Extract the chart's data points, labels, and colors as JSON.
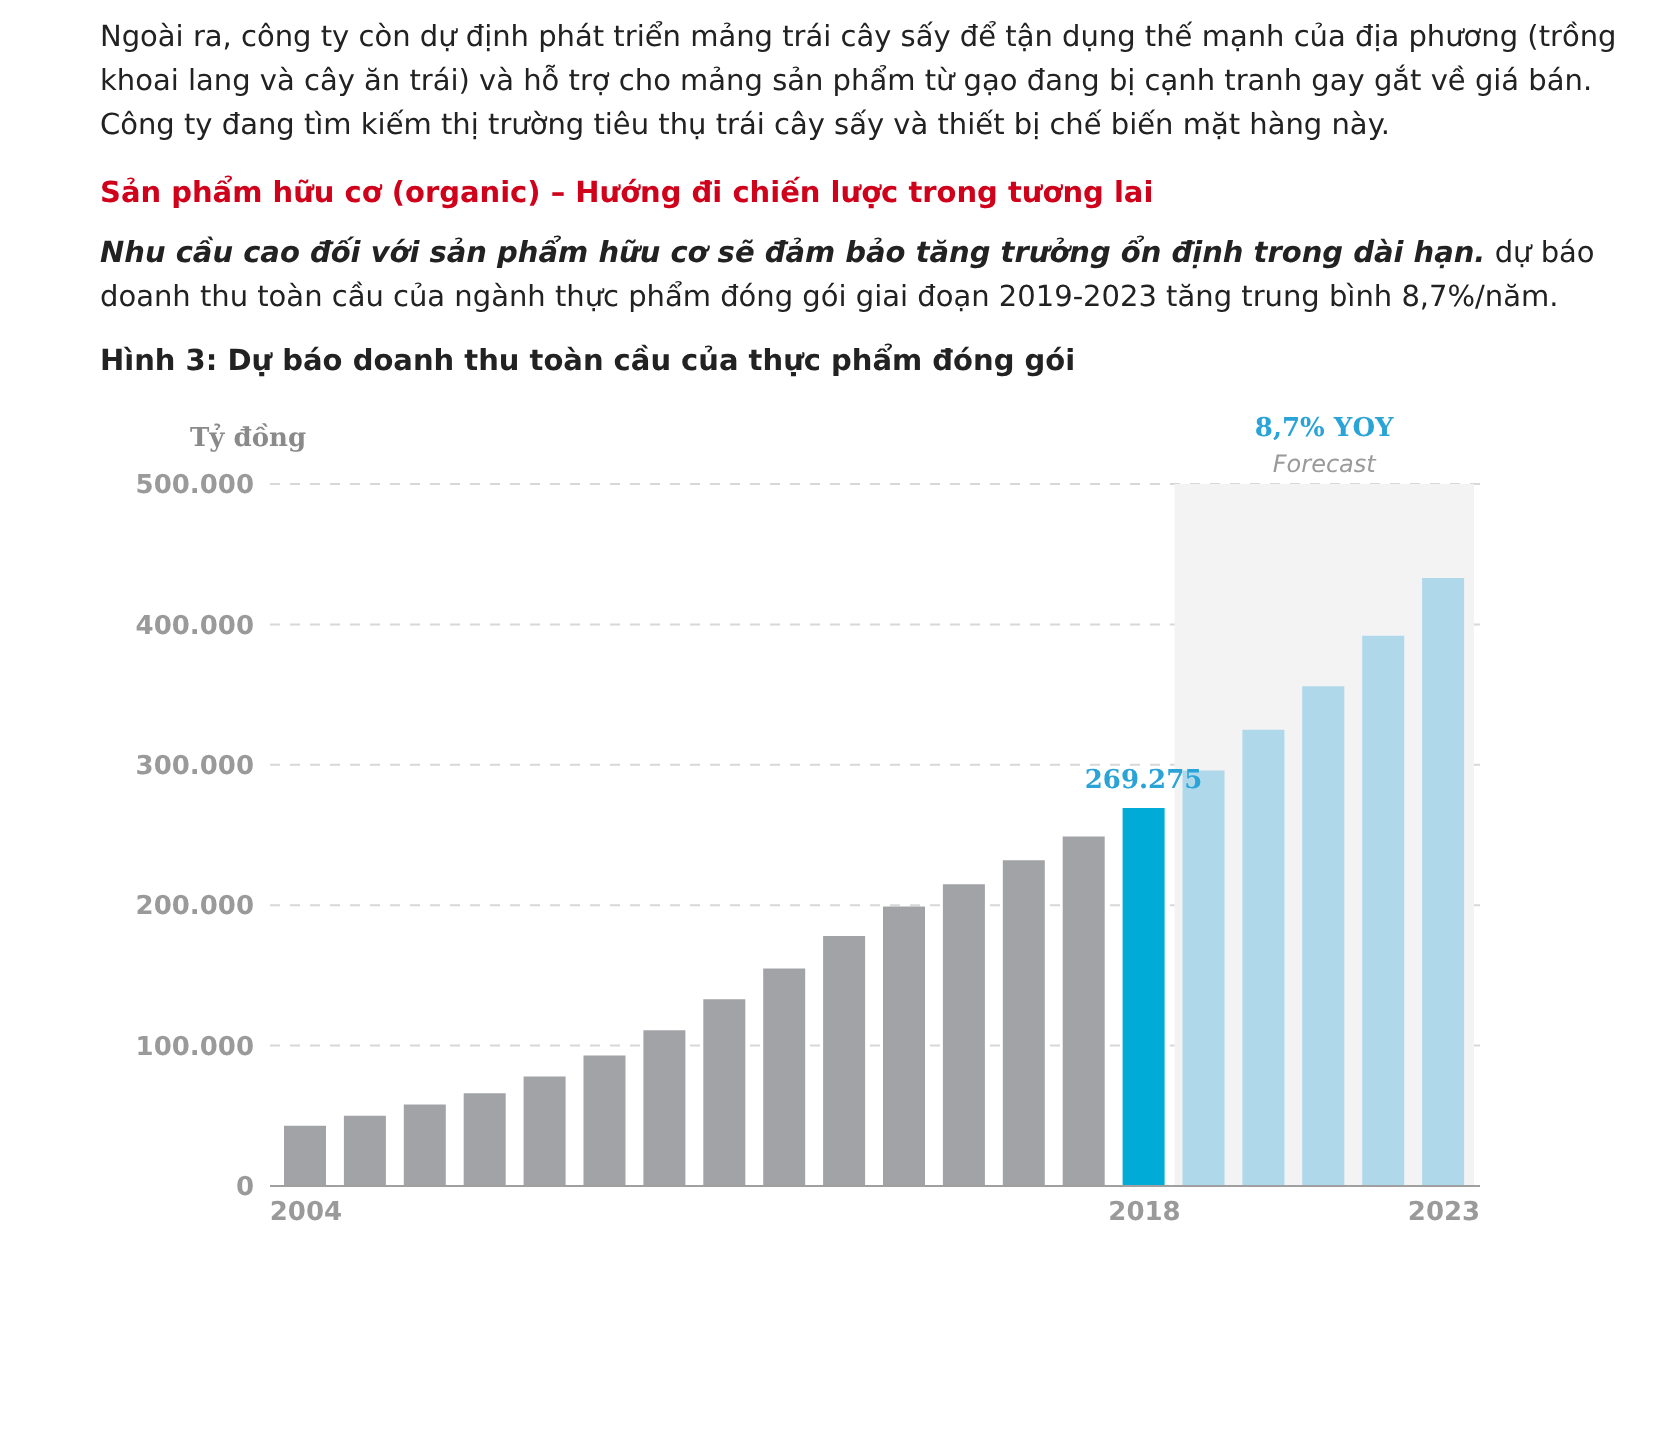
{
  "chart_data": {
    "type": "bar",
    "title": "Hình 3: Dự báo doanh thu toàn cầu của thực phẩm đóng gói",
    "ylabel": "Tỷ đồng",
    "annotations": [
      "Ngoài ra, công ty còn dự định phát triển mảng trái cây sấy để tận dụng thế mạnh của địa phương (trồng khoai lang và cây ăn trái) và hỗ trợ cho mảng sản phẩm từ gạo đang bị cạnh tranh gay gắt về giá bán. Công ty đang tìm kiếm thị trường tiêu thụ trái cây sấy và thiết bị chế biến mặt hàng này.",
      "Sản phẩm hữu cơ (organic) – Hướng đi chiến lược trong tương lai",
      "Nhu cầu cao đối với sản phẩm hữu cơ sẽ đảm bảo tăng trưởng ổn định trong dài hạn.",
      "dự báo doanh thu toàn cầu của ngành thực phẩm đóng gói giai đoạn 2019-2023 tăng trung bình 8,7%/năm.",
      "8,7% YOY"
    ],
    "x": [
      2004,
      2005,
      2006,
      2007,
      2008,
      2009,
      2010,
      2011,
      2012,
      2013,
      2014,
      2015,
      2016,
      2017,
      2018,
      2019,
      2020,
      2021,
      2022,
      2023
    ],
    "values": [
      43000,
      50000,
      58000,
      66000,
      78000,
      93000,
      111000,
      133000,
      155000,
      178000,
      199000,
      215000,
      232000,
      249000,
      269275,
      296000,
      325000,
      356000,
      392000,
      433000
    ],
    "colors": [
      "#a1a3a6",
      "#a1a3a6",
      "#a1a3a6",
      "#a1a3a6",
      "#a1a3a6",
      "#a1a3a6",
      "#a1a3a6",
      "#a1a3a6",
      "#a1a3a6",
      "#a1a3a6",
      "#a1a3a6",
      "#a1a3a6",
      "#a1a3a6",
      "#a1a3a6",
      "#00acd7",
      "#afd8eb",
      "#afd8eb",
      "#afd8eb",
      "#afd8eb",
      "#afd8eb"
    ],
    "value_labels": [
      null,
      null,
      null,
      null,
      null,
      null,
      null,
      null,
      null,
      null,
      null,
      null,
      null,
      null,
      "269.275",
      null,
      null,
      null,
      null,
      null
    ],
    "xlim": [
      2003.4,
      2023.6
    ],
    "xticks": [
      2004,
      2018,
      2023
    ],
    "ylim": [
      0,
      500000
    ],
    "yticks": [
      0,
      {
        "value": 100000,
        "label": "100.000"
      },
      {
        "value": 200000,
        "label": "200.000"
      },
      {
        "value": 300000,
        "label": "300.000"
      },
      {
        "value": 400000,
        "label": "400.000"
      },
      {
        "value": 500000,
        "label": "500.000"
      }
    ],
    "bands": [
      {
        "axis": "x",
        "from": 2018.5,
        "to": 2023.5,
        "label": "Forecast",
        "color": "#f3f3f3"
      }
    ],
    "grid": "y"
  }
}
